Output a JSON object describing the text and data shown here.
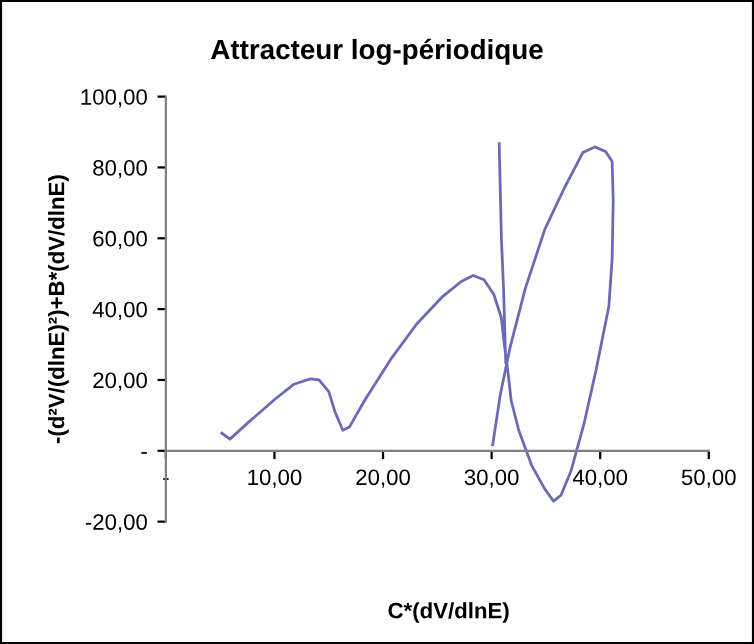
{
  "chart_data": {
    "type": "line",
    "title": "Attracteur log-périodique",
    "xlabel": "C*(dV/dlnE)",
    "ylabel": "-(d²V/(dlnE)²)+B*(dV/dlnE)",
    "series": [
      {
        "color": "#6b6bb5",
        "x": [
          5.15,
          5.9,
          7.7,
          10.1,
          11.8,
          13.3,
          14.1,
          15.0,
          15.6,
          16.3,
          16.9,
          18.3,
          20.7,
          23.1,
          25.4,
          27.2,
          28.3,
          29.3,
          30.2,
          30.9,
          31.2,
          31.5,
          31.8,
          32.5,
          33.7,
          34.9,
          35.7,
          36.4,
          37.3,
          38.5,
          39.6,
          40.8,
          41.1,
          41.2,
          41.1,
          40.5,
          39.5,
          38.4,
          36.7,
          34.9,
          33.1,
          31.7,
          30.8,
          30.1,
          null,
          30.7,
          30.9,
          31.1,
          31.3
        ],
        "values": [
          5.0,
          3.3,
          8.3,
          14.7,
          18.8,
          20.3,
          20.0,
          16.7,
          10.8,
          5.8,
          6.7,
          14.2,
          25.8,
          35.8,
          43.3,
          47.8,
          49.5,
          48.3,
          44.2,
          37.5,
          29.2,
          22.5,
          14.2,
          5.8,
          -4.2,
          -10.8,
          -14.2,
          -12.5,
          -5.8,
          7.5,
          22.5,
          40.8,
          54.2,
          70.8,
          81.7,
          84.5,
          85.8,
          84.2,
          74.2,
          62.5,
          45.8,
          29.2,
          15.8,
          1.7,
          null,
          86.7,
          60.0,
          45.8,
          25.0
        ]
      }
    ],
    "xlim": [
      0,
      50
    ],
    "xticks": [
      {
        "value": 0,
        "label": "-"
      },
      {
        "value": 10,
        "label": "10,00"
      },
      {
        "value": 20,
        "label": "20,00"
      },
      {
        "value": 30,
        "label": "30,00"
      },
      {
        "value": 40,
        "label": "40,00"
      },
      {
        "value": 50,
        "label": "50,00"
      }
    ],
    "ylim": [
      -20,
      100
    ],
    "yticks": [
      {
        "value": -20,
        "label": "-20,00"
      },
      {
        "value": 0,
        "label": "-"
      },
      {
        "value": 20,
        "label": "20,00"
      },
      {
        "value": 40,
        "label": "40,00"
      },
      {
        "value": 60,
        "label": "60,00"
      },
      {
        "value": 80,
        "label": "80,00"
      },
      {
        "value": 100,
        "label": "100,00"
      }
    ],
    "grid": false,
    "marker": "none",
    "line_style": "solid"
  }
}
